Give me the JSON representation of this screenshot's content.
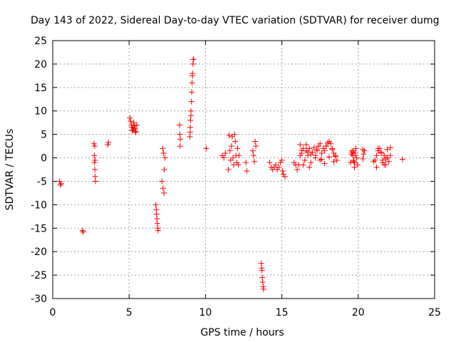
{
  "chart_data": {
    "type": "scatter",
    "title": "Day 143 of 2022, Sidereal Day-to-day VTEC variation (SDTVAR) for receiver dumg",
    "xlabel": "GPS time / hours",
    "ylabel": "SDTVAR / TECUs",
    "xlim": [
      0,
      25
    ],
    "ylim": [
      -30,
      25
    ],
    "xticks": [
      0,
      5,
      10,
      15,
      20,
      25
    ],
    "yticks": [
      25,
      20,
      15,
      10,
      5,
      0,
      -5,
      -10,
      -15,
      -20,
      -25,
      -30
    ],
    "grid": true,
    "marker": "+",
    "color": "#ff0000",
    "series": [
      {
        "name": "SDTVAR",
        "x": [
          0.45,
          0.5,
          0.55,
          1.95,
          2.0,
          2.7,
          2.72,
          2.74,
          2.76,
          2.78,
          2.8,
          2.75,
          2.77,
          3.6,
          3.65,
          5.05,
          5.1,
          5.15,
          5.2,
          5.25,
          5.3,
          5.35,
          5.4,
          5.45,
          5.5,
          5.2,
          5.3,
          5.4,
          6.75,
          6.78,
          6.8,
          6.82,
          6.85,
          6.88,
          6.9,
          7.2,
          7.25,
          7.3,
          7.35,
          7.15,
          7.22,
          7.28,
          8.3,
          8.32,
          8.35,
          8.34,
          8.98,
          9.0,
          9.02,
          9.05,
          9.08,
          9.1,
          9.12,
          9.15,
          9.18,
          9.2,
          9.22,
          9.0,
          9.05,
          9.15,
          10.05,
          11.1,
          11.2,
          11.3,
          11.5,
          11.55,
          11.6,
          11.65,
          11.7,
          11.75,
          11.8,
          11.85,
          11.9,
          11.95,
          12.0,
          12.05,
          12.1,
          12.15,
          12.2,
          12.65,
          12.7,
          13.1,
          13.15,
          13.2,
          13.25,
          13.3,
          13.65,
          13.68,
          13.7,
          13.72,
          13.75,
          13.78,
          13.8,
          14.2,
          14.3,
          14.4,
          14.5,
          14.6,
          14.7,
          14.8,
          14.9,
          15.0,
          15.05,
          15.1,
          15.2,
          15.8,
          15.9,
          16.0,
          16.1,
          16.2,
          16.3,
          16.4,
          16.5,
          16.6,
          16.7,
          16.8,
          16.9,
          17.0,
          17.1,
          17.2,
          17.3,
          17.4,
          17.5,
          17.6,
          17.7,
          17.8,
          17.9,
          18.0,
          18.1,
          18.2,
          18.3,
          18.4,
          18.5,
          18.6,
          16.3,
          16.6,
          16.9,
          17.2,
          17.5,
          17.8,
          18.1,
          18.4,
          16.4,
          16.8,
          17.3,
          17.9,
          18.3,
          16.2,
          16.7,
          17.6,
          18.5,
          19.5,
          19.55,
          19.6,
          19.65,
          19.7,
          19.75,
          19.8,
          19.85,
          19.9,
          19.95,
          19.6,
          19.7,
          19.8,
          19.7,
          19.75,
          20.3,
          20.35,
          20.4,
          20.3,
          21.0,
          21.1,
          21.2,
          21.3,
          21.4,
          21.5,
          21.6,
          21.7,
          21.8,
          21.9,
          22.0,
          22.1,
          21.3,
          21.6,
          21.9,
          21.5,
          21.8,
          22.1,
          21.2,
          21.7,
          22.9
        ]
      }
    ],
    "y_values": [
      -5.0,
      -5.8,
      -5.5,
      -15.5,
      -15.8,
      3.0,
      0.5,
      -1.0,
      -2.5,
      -4.0,
      -5.0,
      2.5,
      -0.5,
      2.8,
      3.3,
      8.5,
      7.8,
      7.0,
      6.5,
      6.0,
      7.5,
      6.8,
      6.2,
      5.5,
      7.0,
      5.8,
      6.3,
      5.6,
      -10.0,
      -11.0,
      -12.0,
      -13.0,
      -14.0,
      -15.0,
      -15.5,
      2.0,
      1.0,
      -2.5,
      0.0,
      -5.0,
      -6.5,
      -7.5,
      7.0,
      5.0,
      4.0,
      2.5,
      4.5,
      6.5,
      8.0,
      10.0,
      12.0,
      14.0,
      16.0,
      18.0,
      20.0,
      21.0,
      21.0,
      5.5,
      9.0,
      17.5,
      2.0,
      0.5,
      0.0,
      1.0,
      -2.5,
      4.8,
      1.5,
      -0.5,
      2.5,
      4.5,
      0.0,
      -1.5,
      5.0,
      3.5,
      0.5,
      -1.0,
      2.0,
      -1.5,
      0.5,
      -1.0,
      -2.8,
      1.5,
      0.5,
      -0.8,
      3.5,
      2.5,
      -22.5,
      -23.5,
      -24.0,
      -25.5,
      -26.5,
      -27.5,
      -28.0,
      -1.0,
      -2.0,
      -2.5,
      -2.0,
      -1.5,
      -2.5,
      -2.0,
      -1.0,
      -0.5,
      -2.8,
      -3.5,
      -4.0,
      -1.0,
      -1.5,
      -2.5,
      -1.5,
      0.5,
      1.0,
      2.0,
      -0.5,
      1.5,
      0.5,
      2.0,
      0.8,
      1.2,
      2.2,
      0.5,
      1.5,
      2.5,
      3.0,
      1.0,
      2.0,
      1.5,
      2.5,
      3.2,
      3.5,
      3.0,
      2.0,
      1.0,
      0.5,
      -0.5,
      1.5,
      2.8,
      -1.0,
      0.0,
      -0.5,
      -1.2,
      0.2,
      -0.8,
      -1.5,
      -2.0,
      1.8,
      2.5,
      1.8,
      2.8,
      1.2,
      -0.3,
      0.3,
      -1.0,
      0.8,
      1.5,
      0.5,
      -0.5,
      -1.0,
      1.0,
      2.0,
      0.0,
      -1.5,
      1.2,
      -0.8,
      0.5,
      1.5,
      -2.0,
      -0.2,
      0.8,
      1.5,
      1.8,
      -0.8,
      -0.5,
      0.5,
      1.5,
      2.0,
      1.0,
      -0.5,
      0.5,
      -1.5,
      1.8,
      -0.8,
      0.5,
      2.0,
      -1.0,
      0.0,
      1.2,
      -0.2,
      2.2,
      -2.0,
      -1.5,
      -0.3
    ]
  }
}
